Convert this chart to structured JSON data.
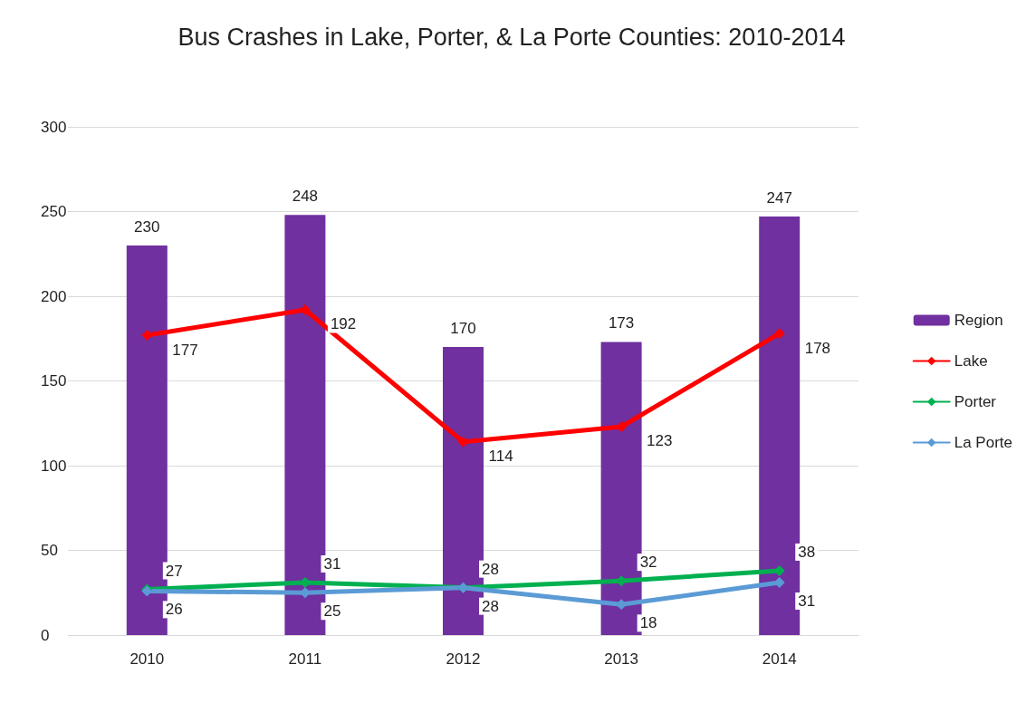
{
  "chart_data": {
    "type": "bar",
    "title": "Bus Crashes in Lake, Porter, & La Porte Counties: 2010-2014",
    "categories": [
      "2010",
      "2011",
      "2012",
      "2013",
      "2014"
    ],
    "series": [
      {
        "name": "Region",
        "color": "#7030a0",
        "values": [
          230,
          248,
          170,
          173,
          247
        ]
      },
      {
        "name": "Lake",
        "type": "line",
        "color": "#ff0000",
        "values": [
          177,
          192,
          114,
          123,
          178
        ]
      },
      {
        "name": "Porter",
        "type": "line",
        "color": "#00b050",
        "values": [
          27,
          31,
          28,
          32,
          38
        ]
      },
      {
        "name": "La Porte",
        "type": "line",
        "color": "#5b9bd5",
        "values": [
          26,
          25,
          28,
          18,
          31
        ]
      }
    ],
    "ylim": [
      0,
      300
    ],
    "yticks": [
      0,
      50,
      100,
      150,
      200,
      250,
      300
    ],
    "grid": "y",
    "legend": "right",
    "marker": "diamond",
    "line_style": "solid",
    "data_labels": true
  }
}
